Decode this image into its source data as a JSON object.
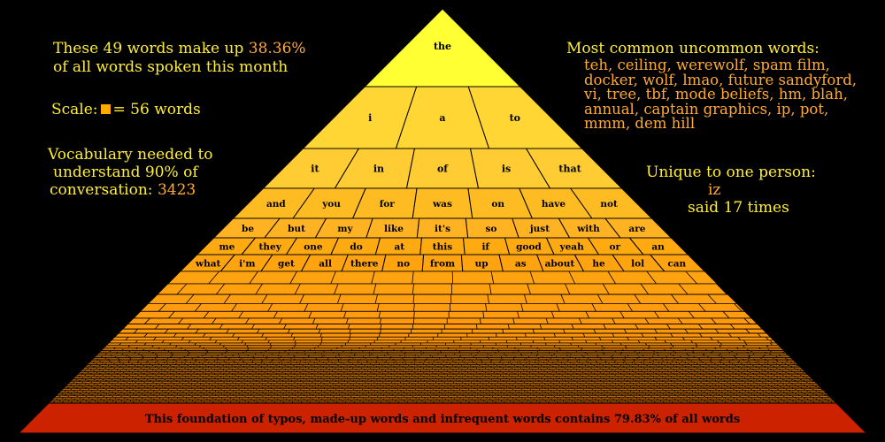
{
  "colors": {
    "background": "#000000",
    "text_primary": "#ffee33",
    "text_accent": "#ffaa33",
    "apex": "#ffff33",
    "tier_top": "#ffdd44",
    "tier_bottom": "#ff9900",
    "foundation": "#cc2200",
    "outline": "#000000"
  },
  "stats": {
    "words_line_prefix": "These 49 words make up",
    "words_percent": "38.36%",
    "words_line2": "of all words spoken this month",
    "scale_label": "Scale:",
    "scale_value": "= 56 words",
    "vocab_line1": "Vocabulary needed to",
    "vocab_line2": "understand 90% of",
    "vocab_line3": "conversation:",
    "vocab_value": "3423"
  },
  "uncommon": {
    "heading": "Most common uncommon words:",
    "list": "teh, ceiling, werewolf, spam film, docker, wolf, lmao, future sandyford, vi, tree, tbf, mode beliefs, hm, blah, annual, captain graphics, ip, pot, mmm, dem hill"
  },
  "unique": {
    "heading": "Unique to one person:",
    "word": "iz",
    "count_text": "said 17 times"
  },
  "chart_data": {
    "type": "pyramid",
    "rows": [
      [
        "the"
      ],
      [
        "i",
        "a",
        "to"
      ],
      [
        "it",
        "in",
        "of",
        "is",
        "that"
      ],
      [
        "and",
        "you",
        "for",
        "was",
        "on",
        "have",
        "not"
      ],
      [
        "be",
        "but",
        "my",
        "like",
        "it's",
        "so",
        "just",
        "with",
        "are"
      ],
      [
        "me",
        "they",
        "one",
        "do",
        "at",
        "this",
        "if",
        "good",
        "yeah",
        "or",
        "an"
      ],
      [
        "what",
        "i'm",
        "get",
        "all",
        "there",
        "no",
        "from",
        "up",
        "as",
        "about",
        "he",
        "lol",
        "can"
      ]
    ],
    "foundation_label": "This foundation of typos, made-up words and infrequent words contains 79.83% of all words"
  }
}
